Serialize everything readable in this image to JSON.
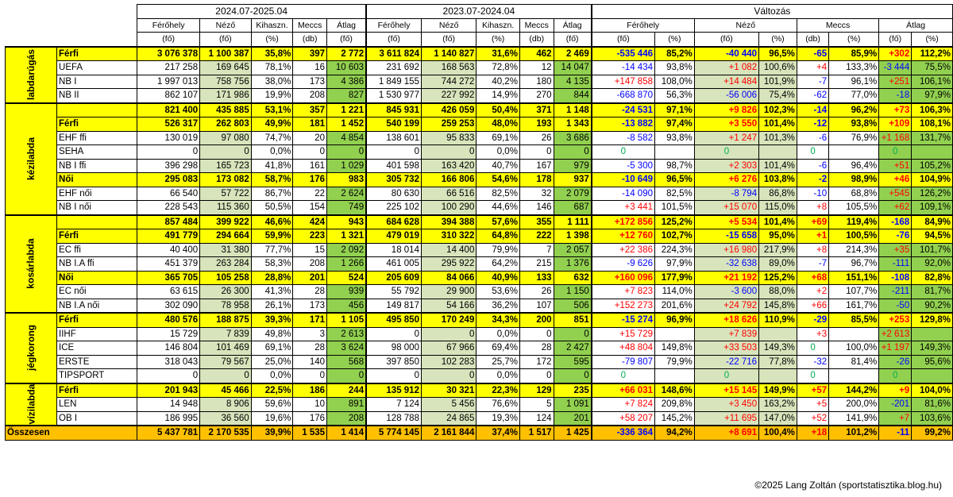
{
  "header": {
    "periods": [
      "2024.07-2025.04",
      "2023.07-2024.04",
      "Változás"
    ],
    "cols_main": [
      "Férőhely",
      "Néző",
      "Kihaszn.",
      "Meccs",
      "Átlag"
    ],
    "units_main": [
      "(fő)",
      "(fő)",
      "(%)",
      "(db)",
      "(fő)"
    ],
    "chg_groups": [
      "Férőhely",
      "Néző",
      "Meccs",
      "Átlag"
    ],
    "chg_units": [
      "(fő)",
      "(%)",
      "(fő)",
      "(%)",
      "(db)",
      "(%)",
      "(fő)",
      "(%)"
    ]
  },
  "sports": [
    {
      "name": "labdarúgás",
      "rows": [
        {
          "label": "Férfi",
          "sum": true,
          "cur": [
            "3 076 378",
            "1 100 387",
            "35,8%",
            "397",
            "2 772"
          ],
          "prev": [
            "3 611 824",
            "1 140 827",
            "31,6%",
            "462",
            "2 469"
          ],
          "chg": [
            "-535 446",
            "85,2%",
            "-40 440",
            "96,5%",
            "-65",
            "85,9%",
            "+302",
            "112,2%"
          ]
        },
        {
          "label": "UEFA",
          "cur": [
            "217 258",
            "169 645",
            "78,1%",
            "16",
            "10 603"
          ],
          "prev": [
            "231 692",
            "168 563",
            "72,8%",
            "12",
            "14 047"
          ],
          "chg": [
            "-14 434",
            "93,8%",
            "+1 082",
            "100,6%",
            "+4",
            "133,3%",
            "-3 444",
            "75,5%"
          ]
        },
        {
          "label": "NB I",
          "cur": [
            "1 997 013",
            "758 756",
            "38,0%",
            "173",
            "4 386"
          ],
          "prev": [
            "1 849 155",
            "744 272",
            "40,2%",
            "180",
            "4 135"
          ],
          "chg": [
            "+147 858",
            "108,0%",
            "+14 484",
            "101,9%",
            "-7",
            "96,1%",
            "+251",
            "106,1%"
          ]
        },
        {
          "label": "NB II",
          "cur": [
            "862 107",
            "171 986",
            "19,9%",
            "208",
            "827"
          ],
          "prev": [
            "1 530 977",
            "227 992",
            "14,9%",
            "270",
            "844"
          ],
          "chg": [
            "-668 870",
            "56,3%",
            "-56 006",
            "75,4%",
            "-62",
            "77,0%",
            "-18",
            "97,9%"
          ]
        }
      ]
    },
    {
      "name": "kézilabda",
      "rows": [
        {
          "label": "",
          "sum": true,
          "cur": [
            "821 400",
            "435 885",
            "53,1%",
            "357",
            "1 221"
          ],
          "prev": [
            "845 931",
            "426 059",
            "50,4%",
            "371",
            "1 148"
          ],
          "chg": [
            "-24 531",
            "97,1%",
            "+9 826",
            "102,3%",
            "-14",
            "96,2%",
            "+73",
            "106,3%"
          ]
        },
        {
          "label": "Férfi",
          "sum": true,
          "cur": [
            "526 317",
            "262 803",
            "49,9%",
            "181",
            "1 452"
          ],
          "prev": [
            "540 199",
            "259 253",
            "48,0%",
            "193",
            "1 343"
          ],
          "chg": [
            "-13 882",
            "97,4%",
            "+3 550",
            "101,4%",
            "-12",
            "93,8%",
            "+109",
            "108,1%"
          ]
        },
        {
          "label": "EHF ffi",
          "cur": [
            "130 019",
            "97 080",
            "74,7%",
            "20",
            "4 854"
          ],
          "prev": [
            "138 601",
            "95 833",
            "69,1%",
            "26",
            "3 686"
          ],
          "chg": [
            "-8 582",
            "93,8%",
            "+1 247",
            "101,3%",
            "-6",
            "76,9%",
            "+1 168",
            "131,7%"
          ]
        },
        {
          "label": "SEHA",
          "cur": [
            "0",
            "0",
            "0,0%",
            "0",
            "0"
          ],
          "prev": [
            "0",
            "0",
            "0,0%",
            "0",
            "0"
          ],
          "chg": [
            "0",
            "",
            "0",
            "",
            "0",
            "",
            "0",
            ""
          ]
        },
        {
          "label": "NB I ffi",
          "cur": [
            "396 298",
            "165 723",
            "41,8%",
            "161",
            "1 029"
          ],
          "prev": [
            "401 598",
            "163 420",
            "40,7%",
            "167",
            "979"
          ],
          "chg": [
            "-5 300",
            "98,7%",
            "+2 303",
            "101,4%",
            "-6",
            "96,4%",
            "+51",
            "105,2%"
          ]
        },
        {
          "label": "Női",
          "sum": true,
          "cur": [
            "295 083",
            "173 082",
            "58,7%",
            "176",
            "983"
          ],
          "prev": [
            "305 732",
            "166 806",
            "54,6%",
            "178",
            "937"
          ],
          "chg": [
            "-10 649",
            "96,5%",
            "+6 276",
            "103,8%",
            "-2",
            "98,9%",
            "+46",
            "104,9%"
          ]
        },
        {
          "label": "EHF női",
          "cur": [
            "66 540",
            "57 722",
            "86,7%",
            "22",
            "2 624"
          ],
          "prev": [
            "80 630",
            "66 516",
            "82,5%",
            "32",
            "2 079"
          ],
          "chg": [
            "-14 090",
            "82,5%",
            "-8 794",
            "86,8%",
            "-10",
            "68,8%",
            "+545",
            "126,2%"
          ]
        },
        {
          "label": "NB I női",
          "cur": [
            "228 543",
            "115 360",
            "50,5%",
            "154",
            "749"
          ],
          "prev": [
            "225 102",
            "100 290",
            "44,6%",
            "146",
            "687"
          ],
          "chg": [
            "+3 441",
            "101,5%",
            "+15 070",
            "115,0%",
            "+8",
            "105,5%",
            "+62",
            "109,1%"
          ]
        }
      ]
    },
    {
      "name": "kosárlabda",
      "rows": [
        {
          "label": "",
          "sum": true,
          "cur": [
            "857 484",
            "399 922",
            "46,6%",
            "424",
            "943"
          ],
          "prev": [
            "684 628",
            "394 388",
            "57,6%",
            "355",
            "1 111"
          ],
          "chg": [
            "+172 856",
            "125,2%",
            "+5 534",
            "101,4%",
            "+69",
            "119,4%",
            "-168",
            "84,9%"
          ]
        },
        {
          "label": "Férfi",
          "sum": true,
          "cur": [
            "491 779",
            "294 664",
            "59,9%",
            "223",
            "1 321"
          ],
          "prev": [
            "479 019",
            "310 322",
            "64,8%",
            "222",
            "1 398"
          ],
          "chg": [
            "+12 760",
            "102,7%",
            "-15 658",
            "95,0%",
            "+1",
            "100,5%",
            "-76",
            "94,5%"
          ]
        },
        {
          "label": "EC ffi",
          "cur": [
            "40 400",
            "31 380",
            "77,7%",
            "15",
            "2 092"
          ],
          "prev": [
            "18 014",
            "14 400",
            "79,9%",
            "7",
            "2 057"
          ],
          "chg": [
            "+22 386",
            "224,3%",
            "+16 980",
            "217,9%",
            "+8",
            "214,3%",
            "+35",
            "101,7%"
          ]
        },
        {
          "label": "NB I.A ffi",
          "cur": [
            "451 379",
            "263 284",
            "58,3%",
            "208",
            "1 266"
          ],
          "prev": [
            "461 005",
            "295 922",
            "64,2%",
            "215",
            "1 376"
          ],
          "chg": [
            "-9 626",
            "97,9%",
            "-32 638",
            "89,0%",
            "-7",
            "96,7%",
            "-111",
            "92,0%"
          ]
        },
        {
          "label": "Női",
          "sum": true,
          "cur": [
            "365 705",
            "105 258",
            "28,8%",
            "201",
            "524"
          ],
          "prev": [
            "205 609",
            "84 066",
            "40,9%",
            "133",
            "632"
          ],
          "chg": [
            "+160 096",
            "177,9%",
            "+21 192",
            "125,2%",
            "+68",
            "151,1%",
            "-108",
            "82,8%"
          ]
        },
        {
          "label": "EC női",
          "cur": [
            "63 615",
            "26 300",
            "41,3%",
            "28",
            "939"
          ],
          "prev": [
            "55 792",
            "29 900",
            "53,6%",
            "26",
            "1 150"
          ],
          "chg": [
            "+7 823",
            "114,0%",
            "-3 600",
            "88,0%",
            "+2",
            "107,7%",
            "-211",
            "81,7%"
          ]
        },
        {
          "label": "NB I.A női",
          "cur": [
            "302 090",
            "78 958",
            "26,1%",
            "173",
            "456"
          ],
          "prev": [
            "149 817",
            "54 166",
            "36,2%",
            "107",
            "506"
          ],
          "chg": [
            "+152 273",
            "201,6%",
            "+24 792",
            "145,8%",
            "+66",
            "161,7%",
            "-50",
            "90,2%"
          ]
        }
      ]
    },
    {
      "name": "jégkorong",
      "rows": [
        {
          "label": "Férfi",
          "sum": true,
          "cur": [
            "480 576",
            "188 875",
            "39,3%",
            "171",
            "1 105"
          ],
          "prev": [
            "495 850",
            "170 249",
            "34,3%",
            "200",
            "851"
          ],
          "chg": [
            "-15 274",
            "96,9%",
            "+18 626",
            "110,9%",
            "-29",
            "85,5%",
            "+253",
            "129,8%"
          ]
        },
        {
          "label": "IIHF",
          "cur": [
            "15 729",
            "7 839",
            "49,8%",
            "3",
            "2 613"
          ],
          "prev": [
            "0",
            "0",
            "0,0%",
            "0",
            "0"
          ],
          "chg": [
            "+15 729",
            "",
            "+7 839",
            "",
            "+3",
            "",
            "+2 613",
            ""
          ]
        },
        {
          "label": "ICE",
          "cur": [
            "146 804",
            "101 469",
            "69,1%",
            "28",
            "3 624"
          ],
          "prev": [
            "98 000",
            "67 966",
            "69,4%",
            "28",
            "2 427"
          ],
          "chg": [
            "+48 804",
            "149,8%",
            "+33 503",
            "149,3%",
            "0",
            "100,0%",
            "+1 197",
            "149,3%"
          ]
        },
        {
          "label": "ERSTE",
          "cur": [
            "318 043",
            "79 567",
            "25,0%",
            "140",
            "568"
          ],
          "prev": [
            "397 850",
            "102 283",
            "25,7%",
            "172",
            "595"
          ],
          "chg": [
            "-79 807",
            "79,9%",
            "-22 716",
            "77,8%",
            "-32",
            "81,4%",
            "-26",
            "95,6%"
          ]
        },
        {
          "label": "TIPSPORT",
          "cur": [
            "0",
            "0",
            "0,0%",
            "0",
            "0"
          ],
          "prev": [
            "0",
            "0",
            "0,0%",
            "0",
            "0"
          ],
          "chg": [
            "0",
            "",
            "0",
            "",
            "0",
            "",
            "0",
            ""
          ]
        }
      ]
    },
    {
      "name": "vízilabda",
      "rows": [
        {
          "label": "Férfi",
          "sum": true,
          "cur": [
            "201 943",
            "45 466",
            "22,5%",
            "186",
            "244"
          ],
          "prev": [
            "135 912",
            "30 321",
            "22,3%",
            "129",
            "235"
          ],
          "chg": [
            "+66 031",
            "148,6%",
            "+15 145",
            "149,9%",
            "+57",
            "144,2%",
            "+9",
            "104,0%"
          ]
        },
        {
          "label": "LEN",
          "cur": [
            "14 948",
            "8 906",
            "59,6%",
            "10",
            "891"
          ],
          "prev": [
            "7 124",
            "5 456",
            "76,6%",
            "5",
            "1 091"
          ],
          "chg": [
            "+7 824",
            "209,8%",
            "+3 450",
            "163,2%",
            "+5",
            "200,0%",
            "-201",
            "81,6%"
          ]
        },
        {
          "label": "OB I",
          "cur": [
            "186 995",
            "36 560",
            "19,6%",
            "176",
            "208"
          ],
          "prev": [
            "128 788",
            "24 865",
            "19,3%",
            "124",
            "201"
          ],
          "chg": [
            "+58 207",
            "145,2%",
            "+11 695",
            "147,0%",
            "+52",
            "141,9%",
            "+7",
            "103,6%"
          ]
        }
      ]
    }
  ],
  "total": {
    "label": "Összesen",
    "cur": [
      "5 437 781",
      "2 170 535",
      "39,9%",
      "1 535",
      "1 414"
    ],
    "prev": [
      "5 774 145",
      "2 161 844",
      "37,4%",
      "1 517",
      "1 425"
    ],
    "chg": [
      "-336 364",
      "94,2%",
      "+8 691",
      "100,4%",
      "+18",
      "101,2%",
      "-11",
      "99,2%"
    ]
  },
  "credit": "©2025 Lang Zoltán (sportstatisztika.blog.hu)"
}
